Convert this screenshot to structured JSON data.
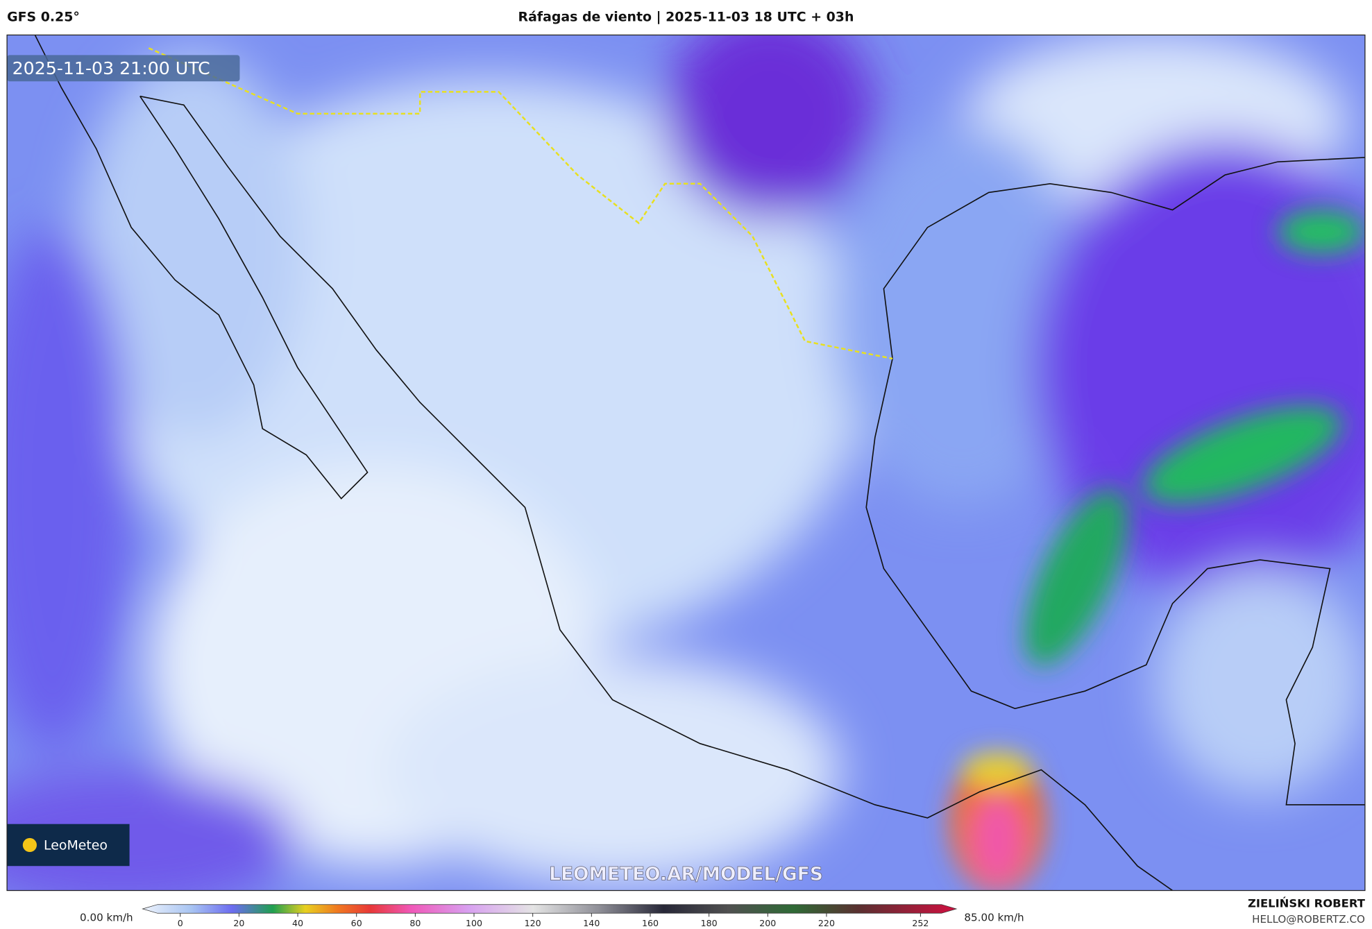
{
  "header": {
    "model": "GFS 0.25°",
    "title": "Ráfagas de viento | 2025-11-03 18 UTC + 03h"
  },
  "map": {
    "timestamp": "2025-11-03 21:00 UTC",
    "logo": "LeoMeteo",
    "watermark": "LEOMETEO.AR/MODEL/GFS"
  },
  "colorbar": {
    "min_label": "0.00 km/h",
    "max_label": "85.00 km/h",
    "ticks": [
      0,
      20,
      40,
      60,
      80,
      100,
      120,
      140,
      160,
      180,
      200,
      220,
      252
    ]
  },
  "footer": {
    "author": "ZIELIŃSKI ROBERT",
    "contact": "HELLO@ROBERTZ.CO"
  }
}
